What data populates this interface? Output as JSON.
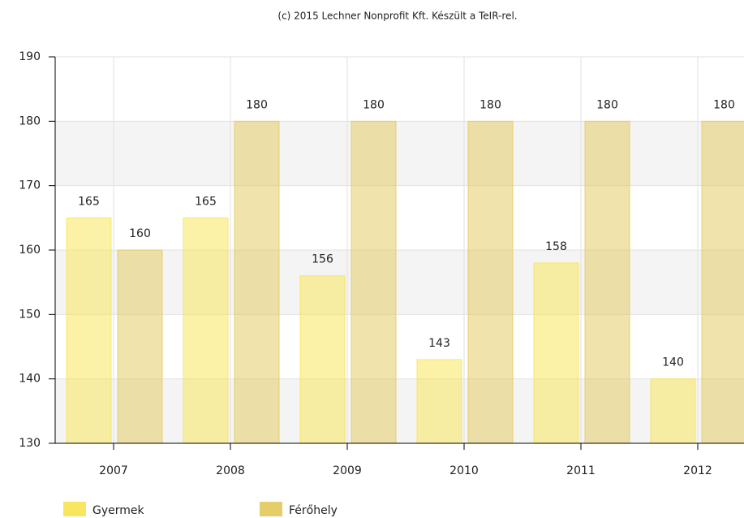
{
  "chart_data": {
    "type": "bar",
    "title": "(c) 2015 Lechner Nonprofit Kft. Készült a TeIR-rel.",
    "categories": [
      "2007",
      "2008",
      "2009",
      "2010",
      "2011",
      "2012"
    ],
    "series": [
      {
        "name": "Gyermek",
        "color": "#f7e34f",
        "values": [
          165,
          165,
          156,
          143,
          158,
          140
        ]
      },
      {
        "name": "Férőhely",
        "color": "#e2c85a",
        "values": [
          160,
          180,
          180,
          180,
          180,
          180
        ]
      }
    ],
    "ylim": [
      130,
      190
    ],
    "yticks": [
      130,
      140,
      150,
      160,
      170,
      180,
      190
    ],
    "grid": true
  }
}
